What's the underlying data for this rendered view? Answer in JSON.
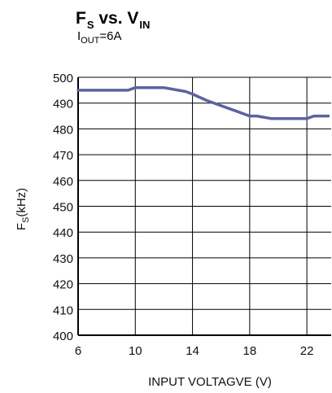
{
  "header": {
    "title_main": "F",
    "title_sub": "S",
    "title_mid": " vs. V",
    "title_sub2": "IN",
    "subtitle_main": "I",
    "subtitle_sub": "OUT",
    "subtitle_rest": "=6A"
  },
  "chart_data": {
    "type": "line",
    "title": "FS vs. VIN",
    "subtitle": "IOUT=6A",
    "xlabel": "INPUT VOLTAGVE (V)",
    "ylabel_main": "F",
    "ylabel_sub": "S",
    "ylabel_rest": "(kHz)",
    "xlim": [
      6,
      23.7
    ],
    "ylim": [
      400,
      500
    ],
    "xticks": [
      6,
      10,
      14,
      18,
      22
    ],
    "yticks": [
      400,
      410,
      420,
      430,
      440,
      450,
      460,
      470,
      480,
      490,
      500
    ],
    "grid": true,
    "line_color": "#5b63a0",
    "series": [
      {
        "x": [
          6.0,
          7.0,
          8.0,
          9.5,
          10.0,
          11.0,
          12.0,
          13.0,
          13.5,
          14.0,
          15.0,
          16.0,
          17.0,
          18.0,
          18.5,
          19.5,
          20.0,
          21.0,
          22.0,
          22.5,
          23.5
        ],
        "y": [
          495,
          495,
          495,
          495,
          496,
          496,
          496,
          495,
          494.5,
          493.5,
          491,
          489,
          487,
          485,
          485,
          484,
          484,
          484,
          484,
          485,
          485
        ]
      }
    ]
  }
}
